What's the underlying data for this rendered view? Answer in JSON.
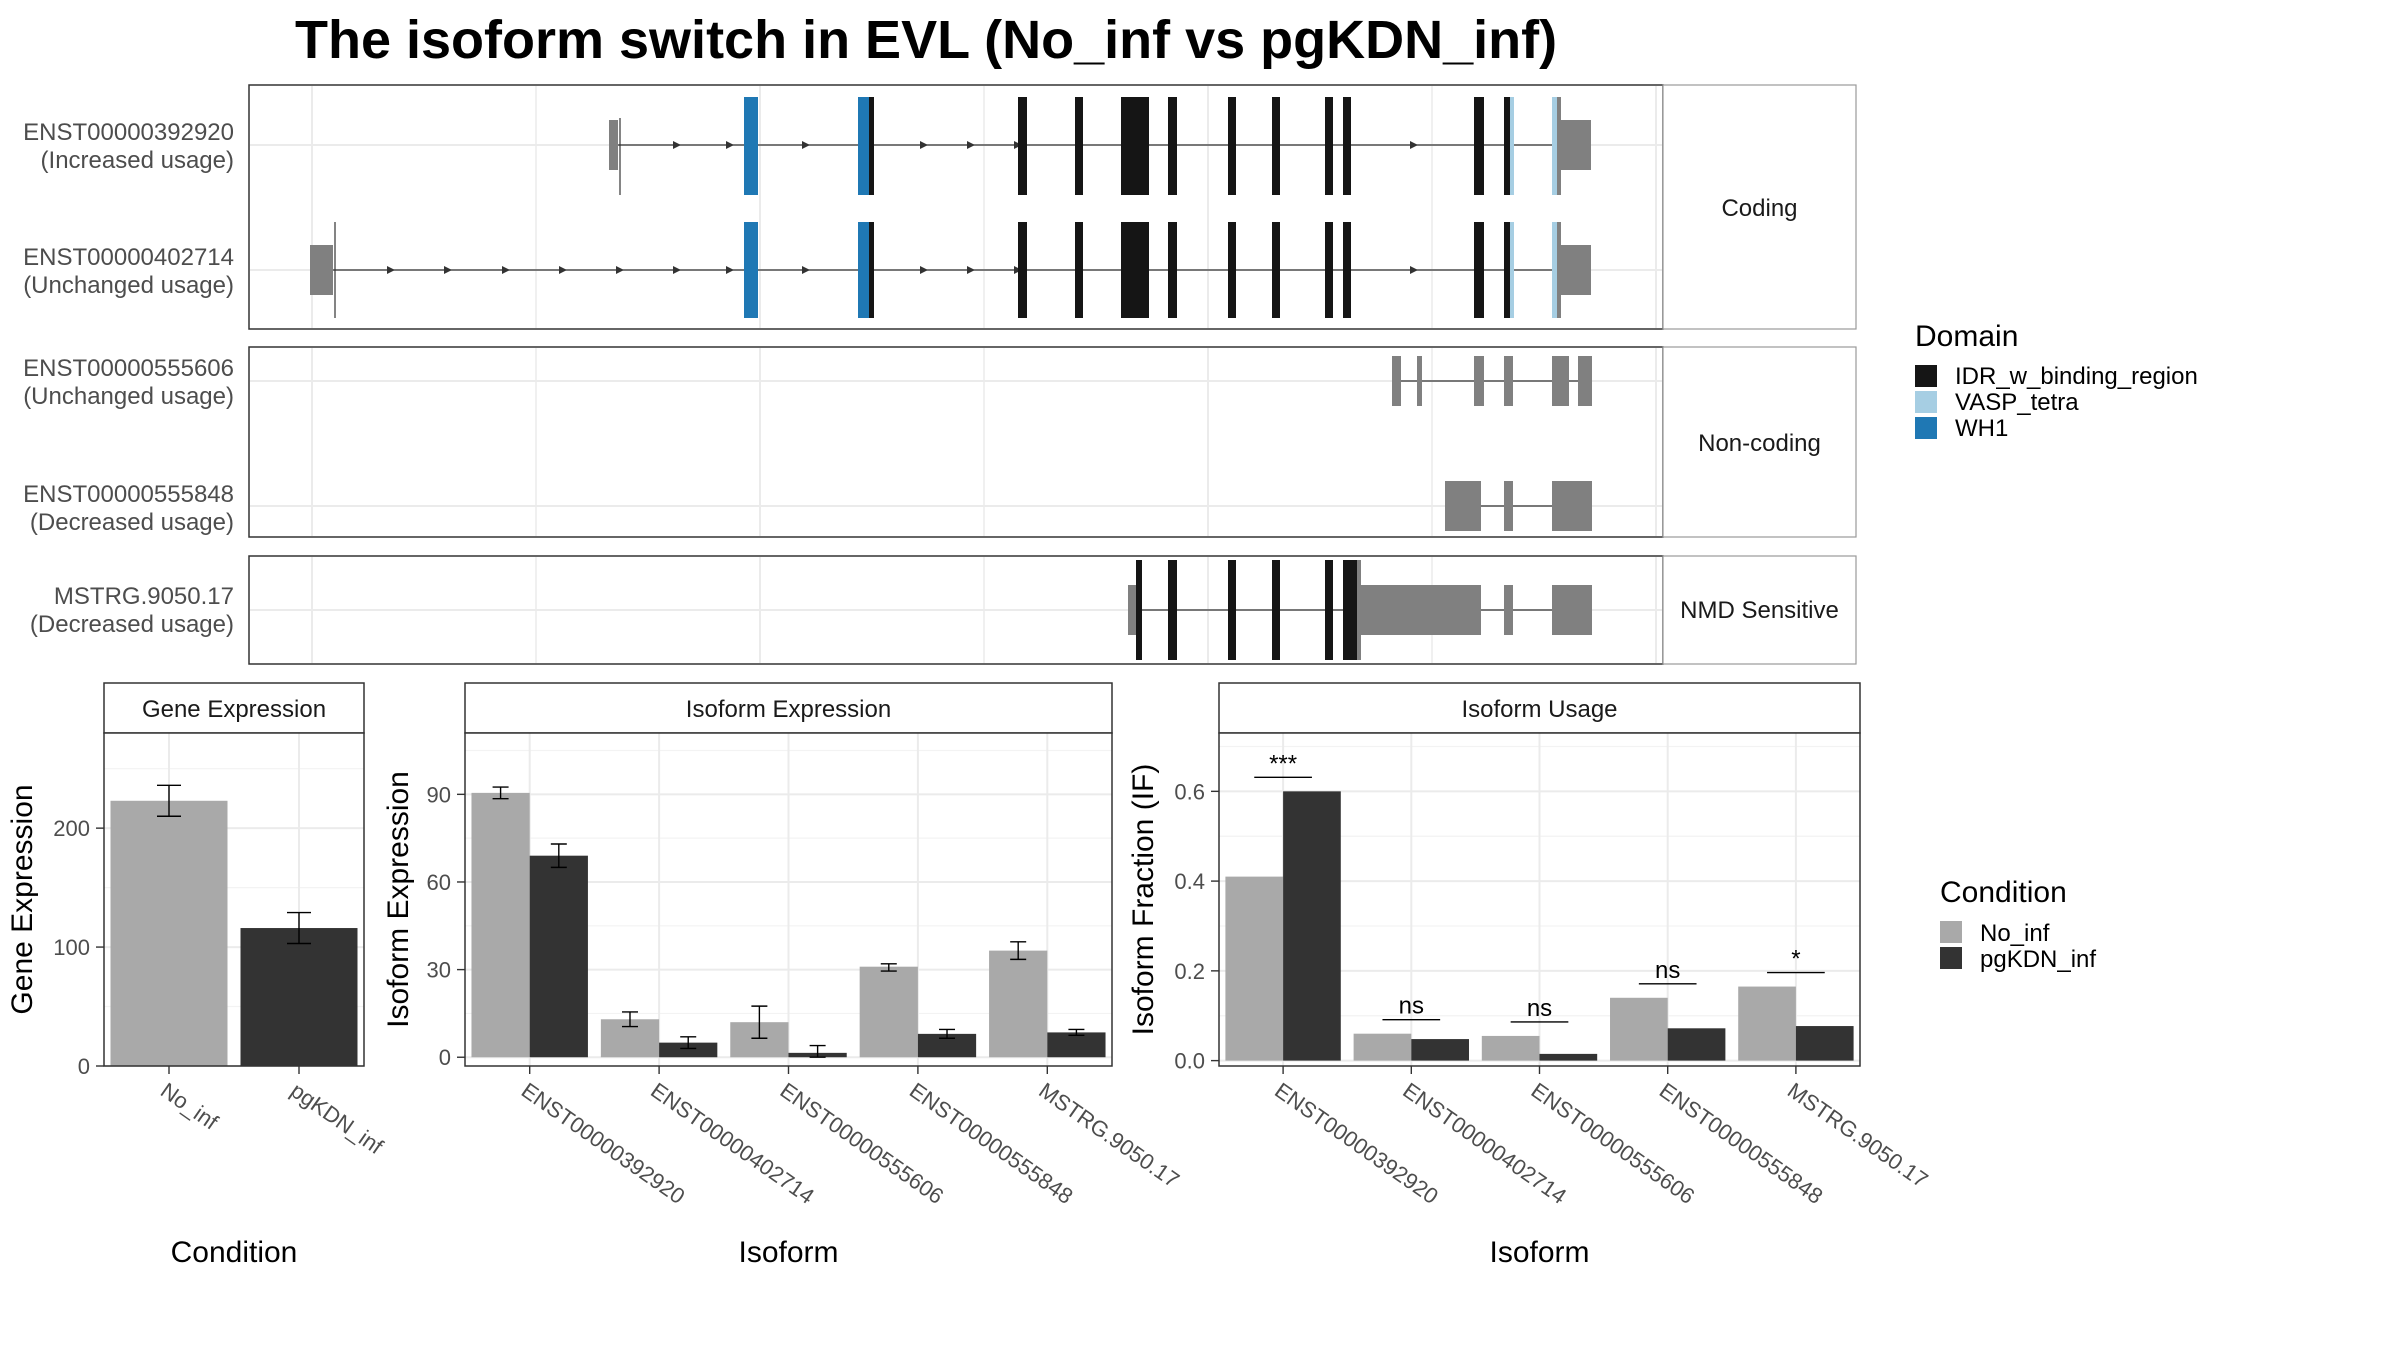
{
  "title": "The isoform switch in EVL (No_inf vs pgKDN_inf)",
  "colors": {
    "exon": "#808080",
    "no_inf": "#a9a9a9",
    "pgkdn_inf": "#333333",
    "IDR_w_binding_region": "#151515",
    "VASP_tetra": "#a6cee3",
    "WH1": "#1f78b4"
  },
  "structure": {
    "groups": [
      {
        "label": "Coding",
        "isoforms": [
          {
            "id": "ENST00000392920",
            "usage": "(Increased usage)"
          },
          {
            "id": "ENST00000402714",
            "usage": "(Unchanged usage)"
          }
        ]
      },
      {
        "label": "Non-coding",
        "isoforms": [
          {
            "id": "ENST00000555606",
            "usage": "(Unchanged usage)"
          },
          {
            "id": "ENST00000555848",
            "usage": "(Decreased usage)"
          }
        ]
      },
      {
        "label": "NMD Sensitive",
        "isoforms": [
          {
            "id": "MSTRG.9050.17",
            "usage": "(Decreased usage)"
          }
        ]
      }
    ],
    "legend": {
      "title": "Domain",
      "items": [
        "IDR_w_binding_region",
        "VASP_tetra",
        "WH1"
      ]
    }
  },
  "chart_data": [
    {
      "type": "bar",
      "title": "Gene Expression",
      "xlabel": "Condition",
      "ylabel": "Gene Expression",
      "categories": [
        "No_inf",
        "pgKDN_inf"
      ],
      "values": [
        223,
        116
      ],
      "errors": [
        [
          210,
          236
        ],
        [
          103,
          129
        ]
      ],
      "yticks": [
        0,
        100,
        200
      ],
      "ylim": [
        0,
        280
      ]
    },
    {
      "type": "bar",
      "title": "Isoform Expression",
      "xlabel": "Isoform",
      "ylabel": "Isoform Expression",
      "categories": [
        "ENST00000392920",
        "ENST00000402714",
        "ENST00000555606",
        "ENST00000555848",
        "MSTRG.9050.17"
      ],
      "series": [
        {
          "name": "No_inf",
          "values": [
            90.5,
            13,
            12,
            31,
            36.5
          ],
          "errors": [
            [
              88.5,
              92.5
            ],
            [
              10.5,
              15.5
            ],
            [
              6.5,
              17.5
            ],
            [
              29.5,
              32
            ],
            [
              33.5,
              39.5
            ]
          ]
        },
        {
          "name": "pgKDN_inf",
          "values": [
            69,
            5,
            1.5,
            8,
            8.5
          ],
          "errors": [
            [
              65,
              73
            ],
            [
              3,
              7
            ],
            [
              0,
              4
            ],
            [
              6.5,
              9.5
            ],
            [
              7.5,
              9.5
            ]
          ]
        }
      ],
      "yticks": [
        0,
        30,
        60,
        90
      ],
      "ylim": [
        -3,
        111
      ]
    },
    {
      "type": "bar",
      "title": "Isoform Usage",
      "xlabel": "Isoform",
      "ylabel": "Isoform Fraction (IF)",
      "categories": [
        "ENST00000392920",
        "ENST00000402714",
        "ENST00000555606",
        "ENST00000555848",
        "MSTRG.9050.17"
      ],
      "series": [
        {
          "name": "No_inf",
          "values": [
            0.41,
            0.06,
            0.055,
            0.14,
            0.165
          ]
        },
        {
          "name": "pgKDN_inf",
          "values": [
            0.6,
            0.048,
            0.015,
            0.072,
            0.077
          ]
        }
      ],
      "significance": [
        "***",
        "ns",
        "ns",
        "ns",
        "*"
      ],
      "yticks": [
        0.0,
        0.2,
        0.4,
        0.6
      ],
      "ylim": [
        -0.012,
        0.73
      ]
    }
  ],
  "condition_legend": {
    "title": "Condition",
    "items": [
      "No_inf",
      "pgKDN_inf"
    ]
  }
}
